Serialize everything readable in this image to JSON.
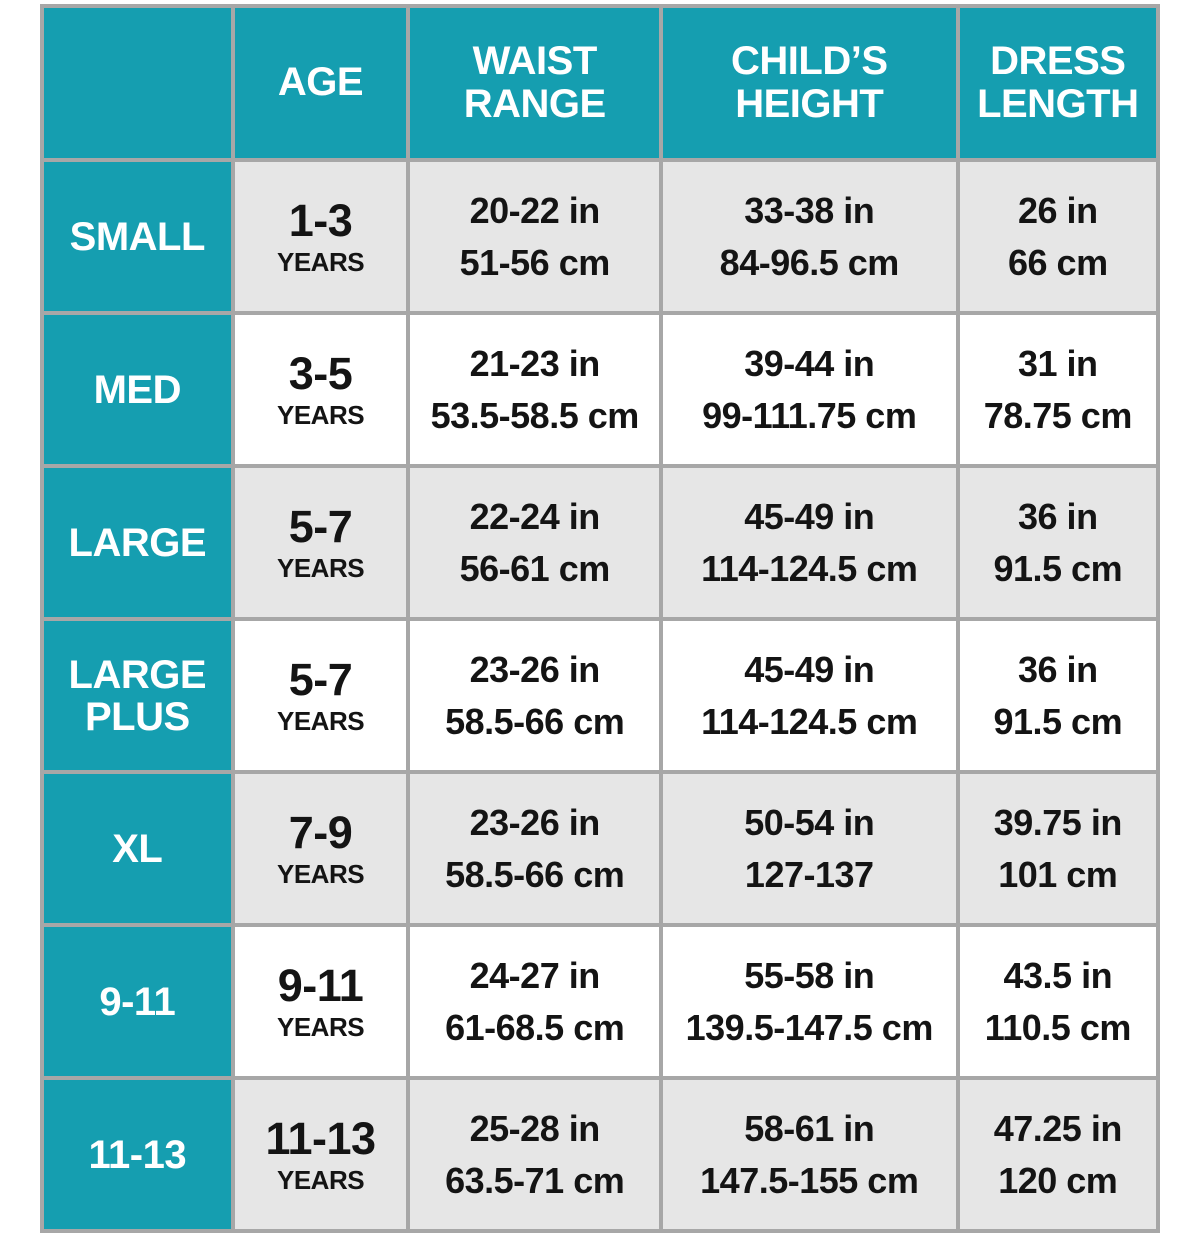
{
  "colors": {
    "teal": "#159eb0",
    "row_gray": "#e6e6e6",
    "row_white": "#ffffff",
    "border_gray": "#a7a7a7",
    "text": "#141414",
    "header_text": "#ffffff"
  },
  "table": {
    "header": {
      "corner": "",
      "age": "AGE",
      "waist": "WAIST\nRANGE",
      "height": "CHILD’S\nHEIGHT",
      "dress": "DRESS\nLENGTH"
    },
    "rows": [
      {
        "size": "SMALL",
        "age": "1-3",
        "age_unit": "YEARS",
        "waist": "20-22 in\n51-56 cm",
        "height": "33-38 in\n84-96.5 cm",
        "dress": "26 in\n66 cm"
      },
      {
        "size": "MED",
        "age": "3-5",
        "age_unit": "YEARS",
        "waist": "21-23 in\n53.5-58.5 cm",
        "height": "39-44 in\n99-111.75 cm",
        "dress": "31 in\n78.75 cm"
      },
      {
        "size": "LARGE",
        "age": "5-7",
        "age_unit": "YEARS",
        "waist": "22-24 in\n56-61 cm",
        "height": "45-49 in\n114-124.5 cm",
        "dress": "36 in\n91.5 cm"
      },
      {
        "size": "LARGE\nPLUS",
        "age": "5-7",
        "age_unit": "YEARS",
        "waist": "23-26 in\n58.5-66 cm",
        "height": "45-49 in\n114-124.5 cm",
        "dress": "36 in\n91.5 cm"
      },
      {
        "size": "XL",
        "age": "7-9",
        "age_unit": "YEARS",
        "waist": "23-26 in\n58.5-66 cm",
        "height": "50-54 in\n127-137",
        "dress": "39.75 in\n101 cm"
      },
      {
        "size": "9-11",
        "age": "9-11",
        "age_unit": "YEARS",
        "waist": "24-27 in\n61-68.5 cm",
        "height": "55-58 in\n139.5-147.5 cm",
        "dress": "43.5 in\n110.5 cm"
      },
      {
        "size": "11-13",
        "age": "11-13",
        "age_unit": "YEARS",
        "waist": "25-28 in\n63.5-71 cm",
        "height": "58-61 in\n147.5-155 cm",
        "dress": "47.25 in\n120 cm"
      }
    ]
  },
  "chart_data": {
    "type": "table",
    "columns": [
      "",
      "AGE",
      "WAIST RANGE",
      "CHILD’S HEIGHT",
      "DRESS LENGTH"
    ],
    "rows": [
      [
        "SMALL",
        "1-3 YEARS",
        "20-22 in / 51-56 cm",
        "33-38 in / 84-96.5 cm",
        "26 in / 66 cm"
      ],
      [
        "MED",
        "3-5 YEARS",
        "21-23 in / 53.5-58.5 cm",
        "39-44 in / 99-111.75 cm",
        "31 in / 78.75 cm"
      ],
      [
        "LARGE",
        "5-7 YEARS",
        "22-24 in / 56-61 cm",
        "45-49 in / 114-124.5 cm",
        "36 in / 91.5 cm"
      ],
      [
        "LARGE PLUS",
        "5-7 YEARS",
        "23-26 in / 58.5-66 cm",
        "45-49 in / 114-124.5 cm",
        "36 in / 91.5 cm"
      ],
      [
        "XL",
        "7-9 YEARS",
        "23-26 in / 58.5-66 cm",
        "50-54 in / 127-137",
        "39.75 in / 101 cm"
      ],
      [
        "9-11",
        "9-11 YEARS",
        "24-27 in / 61-68.5 cm",
        "55-58 in / 139.5-147.5 cm",
        "43.5 in / 110.5 cm"
      ],
      [
        "11-13",
        "11-13 YEARS",
        "25-28 in / 63.5-71 cm",
        "58-61 in / 147.5-155 cm",
        "47.25 in / 120 cm"
      ]
    ]
  }
}
